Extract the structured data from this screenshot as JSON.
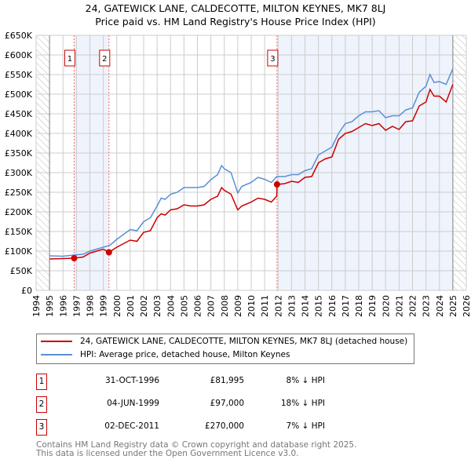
{
  "chart_data": {
    "type": "line",
    "title": "24, GATEWICK LANE, CALDECOTTE, MILTON KEYNES, MK7 8LJ",
    "subtitle": "Price paid vs. HM Land Registry's House Price Index (HPI)",
    "xlim": [
      1994,
      2026
    ],
    "ylim": [
      0,
      650000
    ],
    "x_ticks": [
      "1994",
      "1995",
      "1996",
      "1997",
      "1998",
      "1999",
      "2000",
      "2001",
      "2002",
      "2003",
      "2004",
      "2005",
      "2006",
      "2007",
      "2008",
      "2009",
      "2010",
      "2011",
      "2012",
      "2013",
      "2014",
      "2015",
      "2016",
      "2017",
      "2018",
      "2019",
      "2020",
      "2021",
      "2022",
      "2023",
      "2024",
      "2025",
      "2026"
    ],
    "y_ticks": [
      "£0",
      "£50K",
      "£100K",
      "£150K",
      "£200K",
      "£250K",
      "£300K",
      "£350K",
      "£400K",
      "£450K",
      "£500K",
      "£550K",
      "£600K",
      "£650K"
    ],
    "grid": true,
    "series": [
      {
        "name": "24, GATEWICK LANE, CALDECOTTE, MILTON KEYNES, MK7 8LJ (detached house)",
        "color": "#cc0000",
        "x": [
          1995,
          1996,
          1996.83,
          1997.5,
          1998,
          1999,
          1999.42,
          2000,
          2001,
          2001.5,
          2002,
          2002.5,
          2003,
          2003.3,
          2003.6,
          2004,
          2004.5,
          2005,
          2005.5,
          2006,
          2006.5,
          2007,
          2007.5,
          2007.8,
          2008,
          2008.5,
          2009,
          2009.3,
          2010,
          2010.5,
          2011,
          2011.5,
          2011.9,
          2011.92,
          2012.5,
          2013,
          2013.5,
          2014,
          2014.5,
          2015,
          2015.5,
          2016,
          2016.5,
          2017,
          2017.5,
          2018,
          2018.5,
          2019,
          2019.5,
          2020,
          2020.5,
          2021,
          2021.5,
          2022,
          2022.5,
          2023,
          2023.3,
          2023.6,
          2024,
          2024.5,
          2025
        ],
        "y": [
          80,
          81,
          82,
          85,
          95,
          105,
          97,
          110,
          128,
          125,
          148,
          152,
          185,
          195,
          192,
          205,
          208,
          218,
          215,
          215,
          218,
          232,
          240,
          262,
          255,
          245,
          205,
          215,
          225,
          235,
          232,
          225,
          240,
          270,
          272,
          278,
          275,
          288,
          290,
          325,
          335,
          340,
          385,
          400,
          405,
          415,
          425,
          420,
          425,
          408,
          418,
          410,
          430,
          432,
          470,
          480,
          512,
          495,
          495,
          480,
          525
        ]
      },
      {
        "name": "HPI: Average price, detached house, Milton Keynes",
        "color": "#5b8fd4",
        "x": [
          1995,
          1996,
          1996.8,
          1997.5,
          1998,
          1999,
          1999.5,
          2000,
          2001,
          2001.5,
          2002,
          2002.5,
          2003,
          2003.3,
          2003.6,
          2004,
          2004.5,
          2005,
          2005.5,
          2006,
          2006.5,
          2007,
          2007.5,
          2007.8,
          2008,
          2008.5,
          2009,
          2009.3,
          2010,
          2010.5,
          2011,
          2011.5,
          2011.9,
          2012.5,
          2013,
          2013.5,
          2014,
          2014.5,
          2015,
          2015.5,
          2016,
          2016.5,
          2017,
          2017.5,
          2018,
          2018.5,
          2019,
          2019.5,
          2020,
          2020.5,
          2021,
          2021.5,
          2022,
          2022.5,
          2023,
          2023.3,
          2023.6,
          2024,
          2024.5,
          2025
        ],
        "y": [
          88,
          87,
          90,
          92,
          100,
          110,
          115,
          130,
          155,
          152,
          175,
          185,
          215,
          235,
          232,
          245,
          250,
          262,
          262,
          262,
          265,
          282,
          295,
          318,
          310,
          300,
          248,
          265,
          275,
          288,
          283,
          275,
          290,
          290,
          295,
          295,
          305,
          310,
          345,
          355,
          365,
          400,
          425,
          430,
          445,
          455,
          455,
          458,
          440,
          445,
          445,
          460,
          465,
          505,
          520,
          550,
          530,
          532,
          525,
          565
        ]
      }
    ],
    "y_units": "thousands GBP",
    "sales": [
      {
        "label": "1",
        "x": 1996.83,
        "y": 81.995
      },
      {
        "label": "2",
        "x": 1999.42,
        "y": 97
      },
      {
        "label": "3",
        "x": 2011.92,
        "y": 270
      }
    ]
  },
  "table": [
    {
      "num": "1",
      "date": "31-OCT-1996",
      "price": "£81,995",
      "hpi": "8% ↓ HPI"
    },
    {
      "num": "2",
      "date": "04-JUN-1999",
      "price": "£97,000",
      "hpi": "18% ↓ HPI"
    },
    {
      "num": "3",
      "date": "02-DEC-2011",
      "price": "£270,000",
      "hpi": "7% ↓ HPI"
    }
  ],
  "footer": {
    "line1": "Contains HM Land Registry data © Crown copyright and database right 2025.",
    "line2": "This data is licensed under the Open Government Licence v3.0."
  }
}
